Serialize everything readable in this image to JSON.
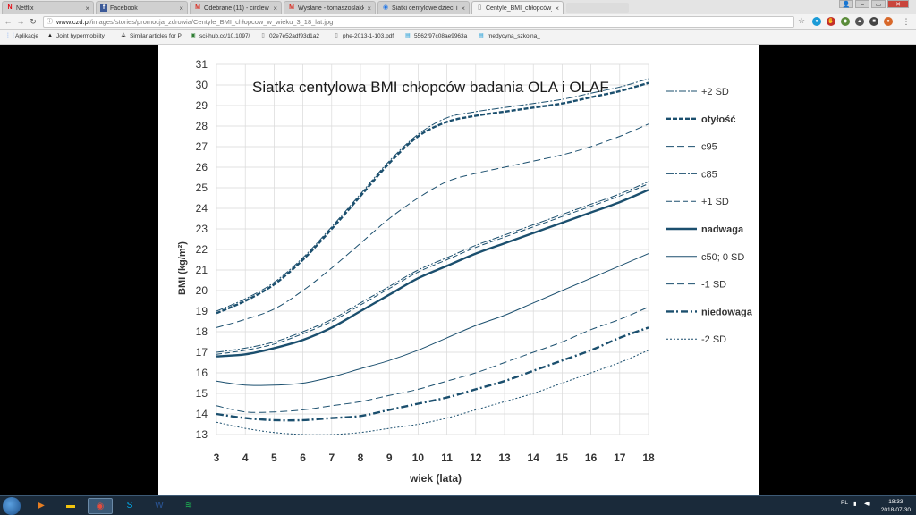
{
  "browser": {
    "tabs": [
      {
        "label": "Netflix",
        "icon": "netflix-icon",
        "active": false
      },
      {
        "label": "Facebook",
        "icon": "facebook-icon",
        "active": false
      },
      {
        "label": "Odebrane (11) - circlew",
        "icon": "gmail-icon",
        "active": false
      },
      {
        "label": "Wysłane - tomaszoslakk",
        "icon": "gmail-icon",
        "active": false
      },
      {
        "label": "Siatki centylowe dzieci i",
        "icon": "globe-icon",
        "active": false
      },
      {
        "label": "Centyle_BMI_chłopców_w",
        "icon": "page-icon",
        "active": true
      }
    ],
    "url_host": "www.czd.pl",
    "url_path": "/images/stories/promocja_zdrowia/Centyle_BMI_chłopcow_w_wieku_3_18_lat.jpg",
    "bookmarks": [
      {
        "label": "Aplikacje",
        "icon": "apps-grid-icon"
      },
      {
        "label": "Joint hypermobility",
        "icon": "bookmark-icon"
      },
      {
        "label": "Similar articles for P",
        "icon": "similar-icon"
      },
      {
        "label": "sci-hub.cc/10.1097/",
        "icon": "scihub-icon"
      },
      {
        "label": "02e7e52adf93d1a2",
        "icon": "page-icon"
      },
      {
        "label": "phe-2013-1-103.pdf",
        "icon": "page-icon"
      },
      {
        "label": "5562f97c08ae9963a",
        "icon": "doc-icon"
      },
      {
        "label": "medycyna_szkolna_",
        "icon": "doc-icon"
      }
    ]
  },
  "chart_data": {
    "type": "line",
    "title": "Siatka centylowa BMI chłopców badania OLA i OLAF",
    "xlabel": "wiek (lata)",
    "ylabel": "BMI (kg/m²)",
    "x": [
      3,
      4,
      5,
      6,
      7,
      8,
      9,
      10,
      11,
      12,
      13,
      14,
      15,
      16,
      17,
      18
    ],
    "xlim": [
      3,
      18
    ],
    "ylim": [
      13,
      31
    ],
    "yticks": [
      13,
      14,
      15,
      16,
      17,
      18,
      19,
      20,
      21,
      22,
      23,
      24,
      25,
      26,
      27,
      28,
      29,
      30,
      31
    ],
    "grid": true,
    "legend_position": "right",
    "color": "#1b4f6e",
    "series": [
      {
        "name": "+2 SD",
        "style": "dashdot-thin",
        "values": [
          19.0,
          19.6,
          20.4,
          21.6,
          23.1,
          24.7,
          26.3,
          27.6,
          28.4,
          28.7,
          28.9,
          29.1,
          29.3,
          29.6,
          29.9,
          30.3
        ]
      },
      {
        "name": "otyłość",
        "style": "dashed-bold",
        "values": [
          18.9,
          19.5,
          20.3,
          21.5,
          23.0,
          24.6,
          26.2,
          27.5,
          28.2,
          28.5,
          28.7,
          28.9,
          29.1,
          29.4,
          29.7,
          30.1
        ]
      },
      {
        "name": "c95",
        "style": "dashed",
        "values": [
          18.2,
          18.6,
          19.1,
          20.0,
          21.1,
          22.3,
          23.5,
          24.5,
          25.3,
          25.7,
          26.0,
          26.3,
          26.6,
          27.0,
          27.5,
          28.1
        ]
      },
      {
        "name": "c85",
        "style": "dashdot-thin",
        "values": [
          17.0,
          17.2,
          17.5,
          18.0,
          18.6,
          19.4,
          20.2,
          21.0,
          21.6,
          22.2,
          22.7,
          23.2,
          23.7,
          24.2,
          24.7,
          25.3
        ]
      },
      {
        "name": "+1 SD",
        "style": "dashed-thin",
        "values": [
          16.9,
          17.1,
          17.4,
          17.9,
          18.5,
          19.3,
          20.1,
          20.9,
          21.5,
          22.1,
          22.6,
          23.1,
          23.6,
          24.1,
          24.6,
          25.2
        ]
      },
      {
        "name": "nadwaga",
        "style": "solid-bold",
        "values": [
          16.8,
          16.9,
          17.2,
          17.6,
          18.2,
          19.0,
          19.8,
          20.6,
          21.2,
          21.8,
          22.3,
          22.8,
          23.3,
          23.8,
          24.3,
          24.9
        ]
      },
      {
        "name": "c50; 0 SD",
        "style": "solid-thin",
        "values": [
          15.6,
          15.4,
          15.4,
          15.5,
          15.8,
          16.2,
          16.6,
          17.1,
          17.7,
          18.3,
          18.8,
          19.4,
          20.0,
          20.6,
          21.2,
          21.8
        ]
      },
      {
        "name": "-1 SD",
        "style": "dashed",
        "values": [
          14.4,
          14.1,
          14.1,
          14.2,
          14.4,
          14.6,
          14.9,
          15.2,
          15.6,
          16.0,
          16.5,
          17.0,
          17.5,
          18.1,
          18.6,
          19.2
        ]
      },
      {
        "name": "niedowaga",
        "style": "dashdot-bold",
        "values": [
          14.0,
          13.8,
          13.7,
          13.7,
          13.8,
          13.9,
          14.2,
          14.5,
          14.8,
          15.2,
          15.6,
          16.1,
          16.6,
          17.1,
          17.7,
          18.2
        ]
      },
      {
        "name": "-2 SD",
        "style": "dotted",
        "values": [
          13.6,
          13.3,
          13.1,
          13.0,
          13.0,
          13.1,
          13.3,
          13.5,
          13.8,
          14.2,
          14.6,
          15.0,
          15.5,
          16.0,
          16.5,
          17.1
        ]
      }
    ]
  },
  "taskbar": {
    "apps": [
      "media-player-icon",
      "explorer-icon",
      "chrome-icon",
      "skype-icon",
      "word-icon",
      "spotify-icon"
    ],
    "language": "PL",
    "time": "18:33",
    "date": "2018-07-30"
  }
}
